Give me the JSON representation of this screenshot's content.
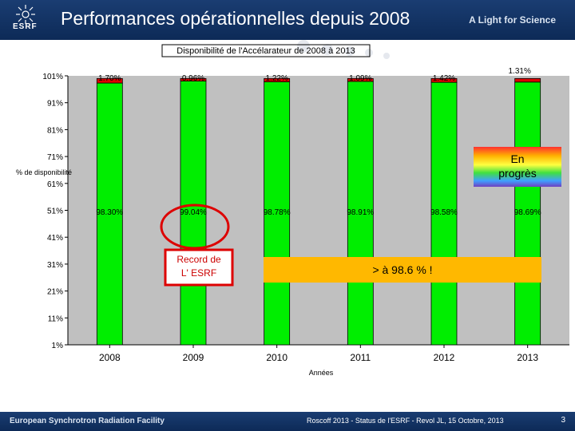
{
  "header": {
    "title": "Performances opérationnelles depuis 2008",
    "logo_text": "ESRF",
    "tagline": "A Light for Science"
  },
  "footer": {
    "left": "European Synchrotron Radiation Facility",
    "credit": "Roscoff 2013 - Status de l'ESRF - Revol JL, 15 Octobre, 2013",
    "page": "3"
  },
  "chart_data": {
    "type": "bar",
    "stacked": true,
    "title": "Disponibilité de l'Accélarateur de 2008 à 2013",
    "xlabel": "Années",
    "ylabel": "% de disponibilité",
    "ylim": [
      1,
      101
    ],
    "yticks": [
      "1%",
      "11%",
      "21%",
      "31%",
      "41%",
      "51%",
      "61%",
      "71%",
      "81%",
      "91%",
      "101%"
    ],
    "categories": [
      "2008",
      "2009",
      "2010",
      "2011",
      "2012",
      "2013"
    ],
    "series": [
      {
        "values": [
          98.3,
          99.04,
          98.78,
          98.91,
          98.58,
          98.69
        ],
        "labels": [
          "98.30%",
          "99.04%",
          "98.78%",
          "98.91%",
          "98.58%",
          "98.69%"
        ],
        "color": "#00ee00"
      },
      {
        "values": [
          1.7,
          0.96,
          1.22,
          1.09,
          1.42,
          1.31
        ],
        "labels": [
          "1.70%",
          "0.96%",
          "1.22%",
          "1.09%",
          "1.42%",
          "1.31%"
        ],
        "color": "#dd0000"
      }
    ],
    "grid": false,
    "annotations": {
      "record": "Record de L' ESRF",
      "above": "> à 98.6 % !",
      "progress": "En progrès"
    }
  },
  "colors": {
    "plot_bg": "#c0c0c0",
    "bar_fill": "#00ee00",
    "downtime": "#dd0000",
    "callout_orange": "#ffb800",
    "highlight_red": "#dd0000"
  }
}
